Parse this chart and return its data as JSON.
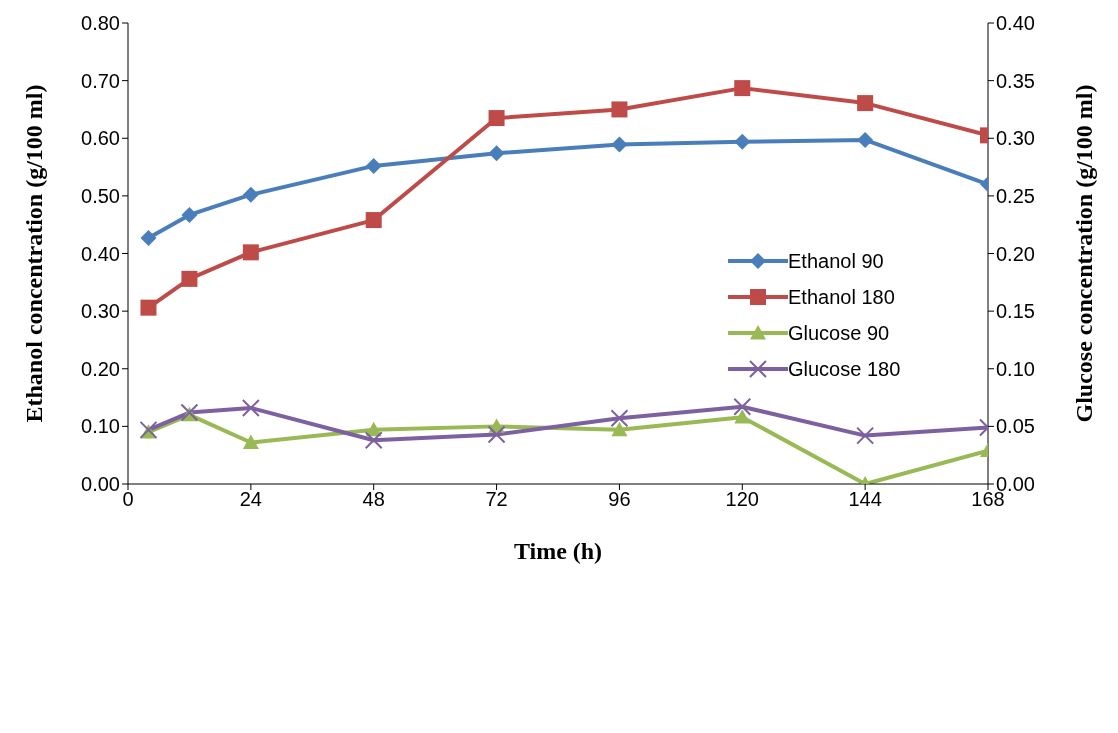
{
  "chart_data": {
    "type": "line",
    "xlabel": "Time (h)",
    "ylabel": "Ethanol concentration (g/100 ml)",
    "y2label": "Glucose concentration (g/100 ml)",
    "x": [
      4,
      12,
      24,
      48,
      72,
      96,
      120,
      144,
      168
    ],
    "xlim": [
      0,
      168
    ],
    "xticks": [
      0,
      24,
      48,
      72,
      96,
      120,
      144,
      168
    ],
    "ylim": [
      0,
      0.8
    ],
    "yticks": [
      {
        "value": 0,
        "label": "0.00"
      },
      {
        "value": 0.1,
        "label": "0.10"
      },
      {
        "value": 0.2,
        "label": "0.20"
      },
      {
        "value": 0.3,
        "label": "0.30"
      },
      {
        "value": 0.4,
        "label": "0.40"
      },
      {
        "value": 0.5,
        "label": "0.50"
      },
      {
        "value": 0.6,
        "label": "0.60"
      },
      {
        "value": 0.7,
        "label": "0.70"
      },
      {
        "value": 0.8,
        "label": "0.80"
      }
    ],
    "y2lim": [
      0,
      0.4
    ],
    "y2ticks": [
      {
        "value": 0,
        "label": "0.00"
      },
      {
        "value": 0.05,
        "label": "0.05"
      },
      {
        "value": 0.1,
        "label": "0.10"
      },
      {
        "value": 0.15,
        "label": "0.15"
      },
      {
        "value": 0.2,
        "label": "0.20"
      },
      {
        "value": 0.25,
        "label": "0.25"
      },
      {
        "value": 0.3,
        "label": "0.30"
      },
      {
        "value": 0.35,
        "label": "0.35"
      },
      {
        "value": 0.4,
        "label": "0.40"
      }
    ],
    "grid": false,
    "legend": "right",
    "line_style": "solid",
    "series": [
      {
        "name": "Ethanol 90",
        "color": "#4a7ebb",
        "marker": "diamond",
        "values": [
          0.427,
          0.467,
          0.502,
          0.552,
          0.574,
          0.589,
          0.594,
          0.597,
          0.52
        ]
      },
      {
        "name": "Ethanol 180",
        "color": "#be4b48",
        "marker": "square",
        "values": [
          0.306,
          0.356,
          0.402,
          0.458,
          0.635,
          0.65,
          0.687,
          0.661,
          0.605
        ]
      },
      {
        "name": "Glucose 90",
        "color": "#98b954",
        "marker": "triangle",
        "axis": "y2",
        "values": [
          0.045,
          0.06,
          0.036,
          0.047,
          0.05,
          0.047,
          0.058,
          0,
          0.029
        ]
      },
      {
        "name": "Glucose 180",
        "color": "#7d60a0",
        "marker": "cross",
        "axis": "y2",
        "values": [
          0.047,
          0.062,
          0.066,
          0.038,
          0.043,
          0.057,
          0.067,
          0.042,
          0.049
        ]
      }
    ]
  }
}
